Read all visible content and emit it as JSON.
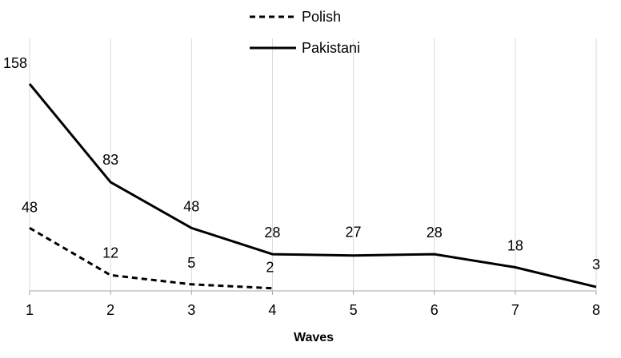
{
  "chart_data": {
    "type": "line",
    "xlabel": "Waves",
    "x": [
      1,
      2,
      3,
      4,
      5,
      6,
      7,
      8
    ],
    "xlim": [
      1,
      8
    ],
    "ylim": [
      0,
      158
    ],
    "grid": "vertical",
    "legend_position": "top-center",
    "series": [
      {
        "name": "Polish",
        "style": "dashed",
        "color": "#000000",
        "x": [
          1,
          2,
          3,
          4
        ],
        "values": [
          48,
          12,
          5,
          2
        ],
        "labels": [
          "48",
          "12",
          "5",
          "2"
        ]
      },
      {
        "name": "Pakistani",
        "style": "solid",
        "color": "#000000",
        "x": [
          1,
          2,
          3,
          4,
          5,
          6,
          7,
          8
        ],
        "values": [
          158,
          83,
          48,
          28,
          27,
          28,
          18,
          3
        ],
        "labels": [
          "158",
          "83",
          "48",
          "28",
          "27",
          "28",
          "18",
          "3"
        ]
      }
    ]
  }
}
